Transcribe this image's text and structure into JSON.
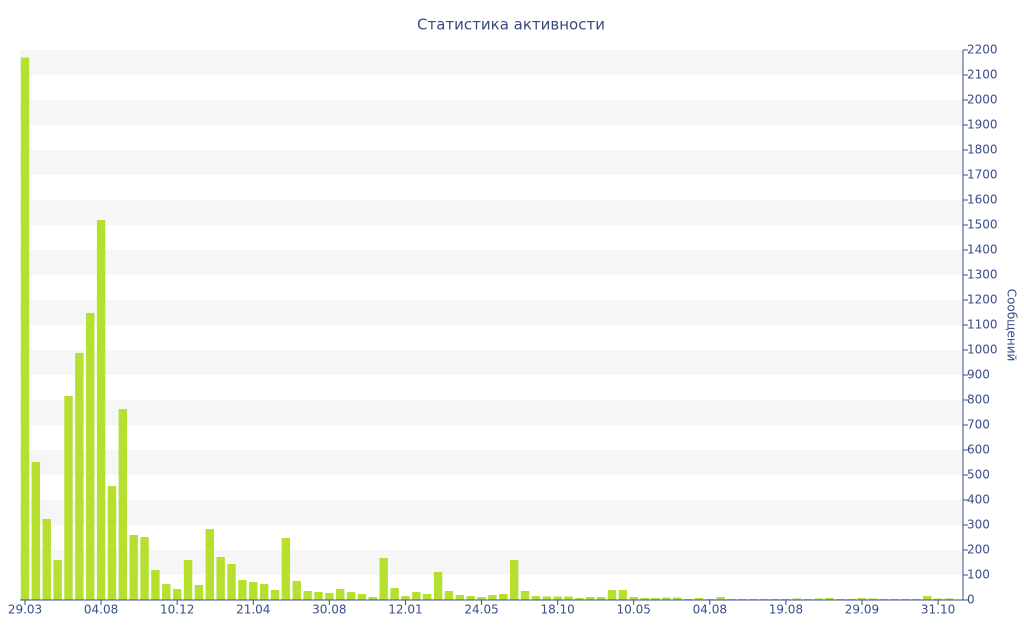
{
  "chart_data": {
    "type": "bar",
    "title": "Статистика активности",
    "y_label": "Сообщений",
    "categories": [
      "29.03",
      null,
      null,
      null,
      null,
      null,
      null,
      "04.08",
      null,
      null,
      null,
      null,
      null,
      null,
      "10.12",
      null,
      null,
      null,
      null,
      null,
      null,
      "21.04",
      null,
      null,
      null,
      null,
      null,
      null,
      "30.08",
      null,
      null,
      null,
      null,
      null,
      null,
      "12.01",
      null,
      null,
      null,
      null,
      null,
      null,
      "24.05",
      null,
      null,
      null,
      null,
      null,
      null,
      "18.10",
      null,
      null,
      null,
      null,
      null,
      null,
      "10.05",
      null,
      null,
      null,
      null,
      null,
      null,
      "04.08",
      null,
      null,
      null,
      null,
      null,
      null,
      "19.08",
      null,
      null,
      null,
      null,
      null,
      null,
      "29.09",
      null,
      null,
      null,
      null,
      null,
      null,
      "31.10",
      null
    ],
    "values": [
      2170,
      552,
      324,
      160,
      816,
      988,
      1148,
      1520,
      456,
      764,
      260,
      252,
      120,
      64,
      44,
      160,
      60,
      284,
      172,
      144,
      80,
      72,
      64,
      40,
      248,
      76,
      36,
      32,
      28,
      44,
      32,
      24,
      12,
      168,
      48,
      16,
      32,
      24,
      112,
      36,
      20,
      16,
      12,
      20,
      24,
      160,
      36,
      16,
      14,
      14,
      14,
      8,
      12,
      12,
      40,
      40,
      12,
      8,
      8,
      10,
      10,
      4,
      8,
      4,
      12,
      4,
      4,
      4,
      4,
      4,
      4,
      6,
      4,
      6,
      8,
      4,
      4,
      8,
      6,
      4,
      4,
      4,
      4,
      16,
      6,
      6
    ],
    "color": "#b5e02f",
    "ylim": [
      0,
      2200
    ],
    "yticks": [
      0,
      100,
      200,
      300,
      400,
      500,
      600,
      700,
      800,
      900,
      1000,
      1100,
      1200,
      1300,
      1400,
      1500,
      1600,
      1700,
      1800,
      1900,
      2000,
      2100,
      2200
    ],
    "y_axis_side": "right",
    "banded_grid": true
  }
}
